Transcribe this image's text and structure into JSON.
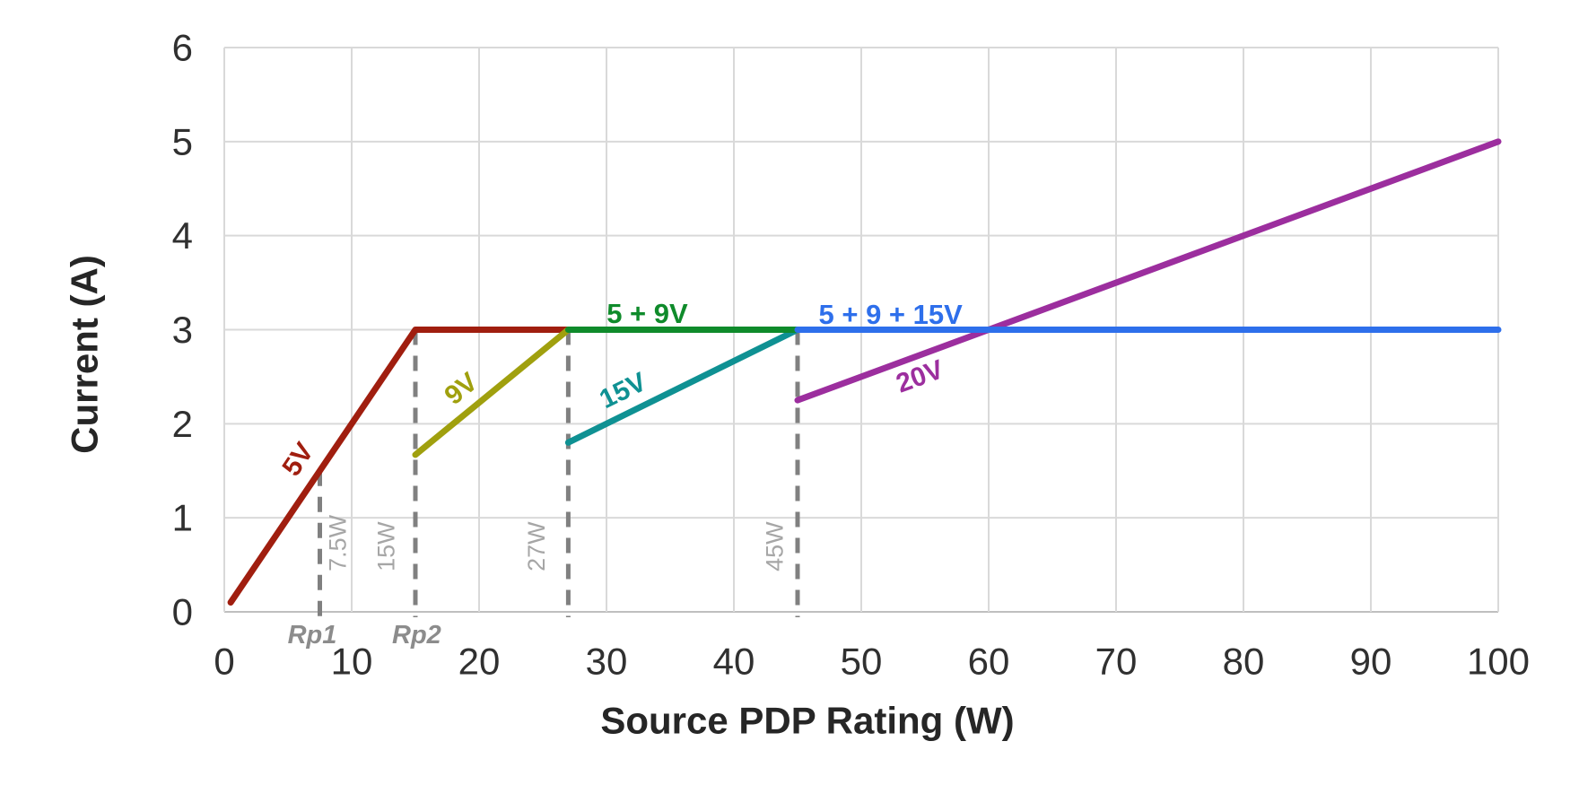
{
  "chart_data": {
    "type": "line",
    "title": "",
    "xlabel": "Source PDP Rating (W)",
    "ylabel": "Current (A)",
    "xlim": [
      0,
      100
    ],
    "ylim": [
      0,
      6
    ],
    "xticks": [
      0,
      10,
      20,
      30,
      40,
      50,
      60,
      70,
      80,
      90,
      100
    ],
    "yticks": [
      0,
      1,
      2,
      3,
      4,
      5,
      6
    ],
    "grid": true,
    "series": [
      {
        "name": "5V",
        "color": "#A01E0F",
        "points": [
          [
            0.5,
            0.1
          ],
          [
            15,
            3
          ],
          [
            27,
            3
          ]
        ]
      },
      {
        "name": "9V",
        "color": "#A0A00E",
        "points": [
          [
            15,
            1.67
          ],
          [
            27,
            3
          ]
        ]
      },
      {
        "name": "15V",
        "color": "#0F9193",
        "points": [
          [
            27,
            1.8
          ],
          [
            45,
            3
          ]
        ]
      },
      {
        "name": "20V",
        "color": "#9C2E9E",
        "points": [
          [
            45,
            2.25
          ],
          [
            100,
            5
          ]
        ]
      },
      {
        "name": "5 + 9V",
        "color": "#0F8B2B",
        "points": [
          [
            27,
            3
          ],
          [
            45,
            3
          ]
        ]
      },
      {
        "name": "5 + 9 + 15V",
        "color": "#2E6FEB",
        "points": [
          [
            45,
            3
          ],
          [
            100,
            3
          ]
        ]
      }
    ],
    "series_labels": [
      {
        "text": "5V",
        "x": 5.8,
        "y": 1.62,
        "rot": -56,
        "color": "#A01E0F",
        "size": 30
      },
      {
        "text": "9V",
        "x": 18.6,
        "y": 2.37,
        "rot": -39,
        "color": "#A0A00E",
        "size": 30
      },
      {
        "text": "15V",
        "x": 31.3,
        "y": 2.35,
        "rot": -26,
        "color": "#0F9193",
        "size": 30
      },
      {
        "text": "20V",
        "x": 54.6,
        "y": 2.5,
        "rot": -20,
        "color": "#9C2E9E",
        "size": 30
      },
      {
        "text": "5 + 9V",
        "x": 33.2,
        "y": 3.17,
        "rot": 0,
        "color": "#0F8B2B",
        "size": 31
      },
      {
        "text": "5 + 9 + 15V",
        "x": 52.3,
        "y": 3.16,
        "rot": 0,
        "color": "#2E6FEB",
        "size": 31
      }
    ],
    "thresholds": [
      {
        "label": "7.5W",
        "x": 7.5,
        "top": 1.5,
        "label_x": 8.9
      },
      {
        "label": "15W",
        "x": 15,
        "top": 3,
        "label_x": 12.7
      },
      {
        "label": "27W",
        "x": 27,
        "top": 3,
        "label_x": 24.5
      },
      {
        "label": "45W",
        "x": 45,
        "top": 3,
        "label_x": 43.2
      }
    ],
    "rp_labels": [
      {
        "text": "Rp1",
        "x": 6.9
      },
      {
        "text": "Rp2",
        "x": 15.1
      }
    ],
    "colors": {
      "grid": "#D9D9D9",
      "axis": "#BFBFBF",
      "dash": "#808080",
      "tick_text": "#303030",
      "title_text": "#262626",
      "threshold_text": "#A6A6A6",
      "rp_text": "#8C8C8C"
    }
  }
}
